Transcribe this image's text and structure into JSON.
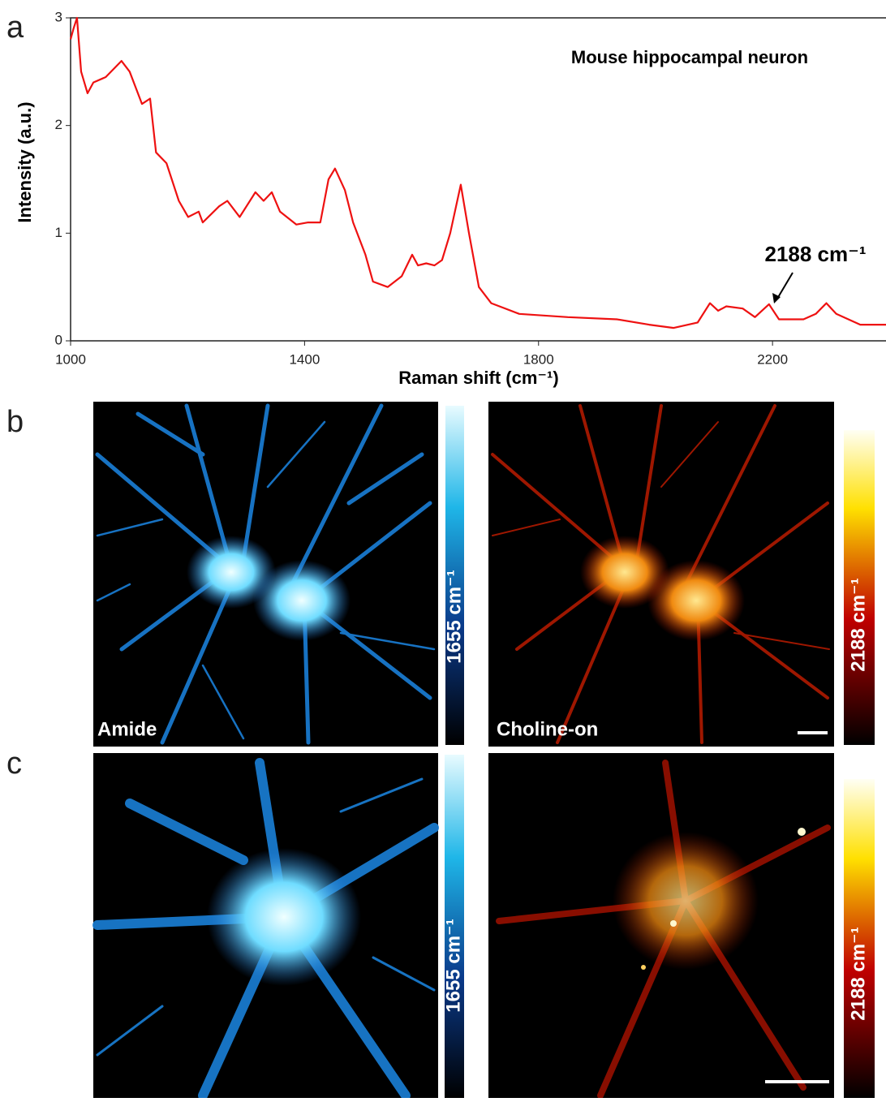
{
  "chart_data": {
    "type": "line",
    "title": "Mouse hippocampal neuron",
    "x_label": "Raman shift (cm⁻¹)",
    "y_label": "Intensity (a.u.)",
    "annotation": "2188 cm⁻¹",
    "x": [
      1000,
      1005,
      1011,
      1018,
      1029,
      1039,
      1060,
      1087,
      1101,
      1122,
      1136,
      1146,
      1164,
      1185,
      1201,
      1219,
      1226,
      1254,
      1268,
      1289,
      1316,
      1330,
      1344,
      1358,
      1386,
      1406,
      1427,
      1441,
      1452,
      1469,
      1483,
      1504,
      1517,
      1542,
      1566,
      1584,
      1594,
      1608,
      1622,
      1635,
      1649,
      1667,
      1681,
      1698,
      1719,
      1767,
      1850,
      1934,
      1989,
      2031,
      2072,
      2093,
      2107,
      2121,
      2149,
      2170,
      2194,
      2211,
      2253,
      2274,
      2292,
      2309,
      2350,
      2394
    ],
    "values": [
      2.8,
      2.9,
      3.0,
      2.5,
      2.3,
      2.4,
      2.45,
      2.6,
      2.5,
      2.2,
      2.25,
      1.75,
      1.65,
      1.3,
      1.15,
      1.2,
      1.1,
      1.25,
      1.3,
      1.15,
      1.38,
      1.3,
      1.38,
      1.2,
      1.08,
      1.1,
      1.1,
      1.5,
      1.6,
      1.4,
      1.1,
      0.8,
      0.55,
      0.5,
      0.6,
      0.8,
      0.7,
      0.72,
      0.7,
      0.75,
      1.0,
      1.45,
      1.0,
      0.5,
      0.35,
      0.25,
      0.22,
      0.2,
      0.15,
      0.12,
      0.17,
      0.35,
      0.28,
      0.32,
      0.3,
      0.22,
      0.34,
      0.2,
      0.2,
      0.25,
      0.35,
      0.25,
      0.15,
      0.15
    ],
    "color": "#ee1111",
    "xlim": [
      1000,
      2394
    ],
    "ylim": [
      0,
      3
    ],
    "xticks": [
      1000,
      1400,
      1800,
      2200
    ],
    "yticks": [
      0,
      1,
      2,
      3
    ]
  },
  "panels": [
    {
      "label": "a"
    },
    {
      "label": "b",
      "images": [
        {
          "label": "Amide",
          "colorbar": "1655 cm⁻¹"
        },
        {
          "label": "Choline-on",
          "colorbar": "2188 cm⁻¹"
        }
      ]
    },
    {
      "label": "c",
      "images": [
        {
          "colorbar": "1655 cm⁻¹"
        },
        {
          "colorbar": "2188 cm⁻¹"
        }
      ]
    }
  ]
}
